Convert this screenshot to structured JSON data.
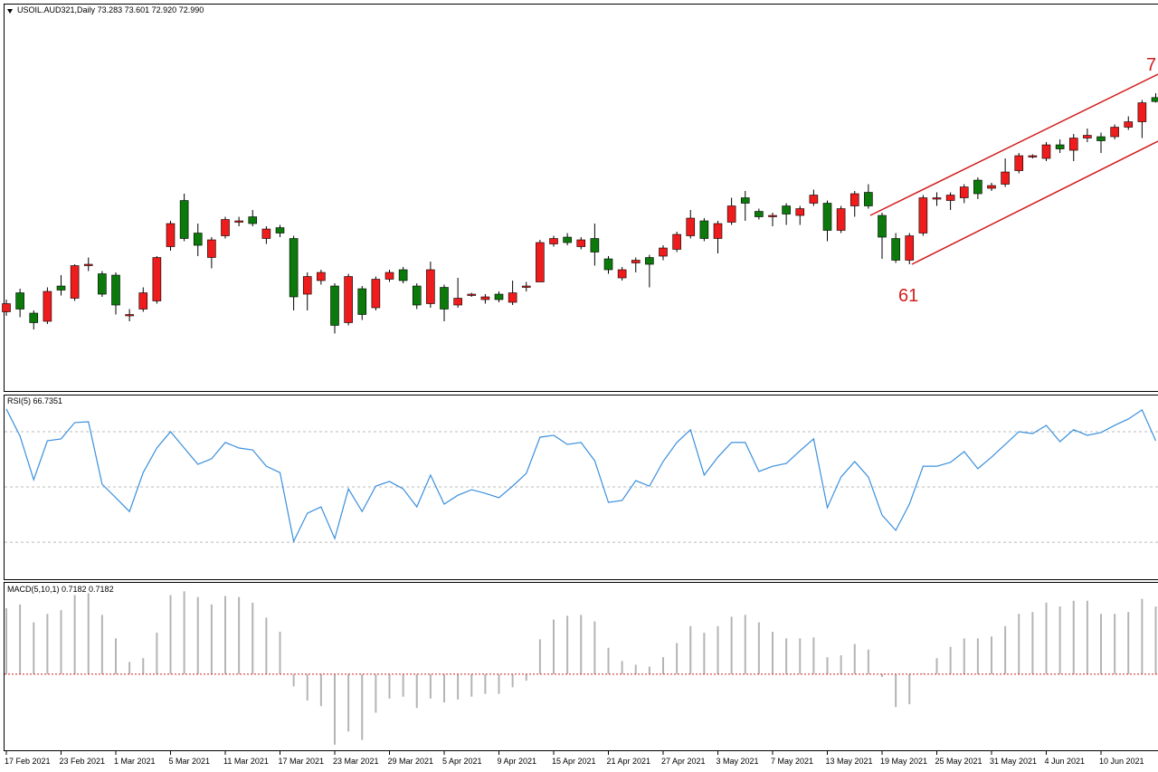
{
  "chart_data": [
    {
      "type": "candlestick",
      "title": "USOIL.AUD321,Daily",
      "ohlc_labels": [
        "73.283",
        "73.601",
        "72.920",
        "72.990"
      ],
      "categories": [
        "17 Feb 2021",
        null,
        null,
        null,
        "23 Feb 2021",
        null,
        null,
        null,
        "1 Mar 2021",
        null,
        null,
        null,
        "5 Mar 2021",
        null,
        null,
        null,
        "11 Mar 2021",
        null,
        null,
        null,
        "17 Mar 2021",
        null,
        null,
        null,
        "23 Mar 2021",
        null,
        null,
        null,
        "29 Mar 2021",
        null,
        null,
        null,
        "5 Apr 2021",
        null,
        null,
        null,
        "9 Apr 2021",
        null,
        null,
        null,
        "15 Apr 2021",
        null,
        null,
        null,
        "21 Apr 2021",
        null,
        null,
        null,
        "27 Apr 2021",
        null,
        null,
        null,
        "3 May 2021",
        null,
        null,
        null,
        "7 May 2021",
        null,
        null,
        null,
        "13 May 2021",
        null,
        null,
        null,
        "19 May 2021",
        null,
        null,
        null,
        "25 May 2021",
        null,
        null,
        null,
        "31 May 2021",
        null,
        null,
        null,
        "4 Jun 2021",
        null,
        null,
        null,
        "10 Jun 2021",
        null,
        null,
        null,
        null
      ],
      "open": [
        57.5,
        58.9,
        57.4,
        56.8,
        59.4,
        58.5,
        60.9,
        60.3,
        60.2,
        57.2,
        57.7,
        58.3,
        62.3,
        65.7,
        63.3,
        61.5,
        63.1,
        64.1,
        64.5,
        62.9,
        63.7,
        62.9,
        58.8,
        59.8,
        59.4,
        56.7,
        59.2,
        57.8,
        59.9,
        60.6,
        59.4,
        58.1,
        59.3,
        58.0,
        58.7,
        58.4,
        58.8,
        58.2,
        59.3,
        59.7,
        62.5,
        63.0,
        62.3,
        62.9,
        61.4,
        60.0,
        61.1,
        61.5,
        61.6,
        62.1,
        63.1,
        64.2,
        62.9,
        64.1,
        65.9,
        64.9,
        64.5,
        65.3,
        64.6,
        65.5,
        65.5,
        63.5,
        65.3,
        66.3,
        64.6,
        62.9,
        61.3,
        63.3,
        65.8,
        65.7,
        65.9,
        67.2,
        66.6,
        66.9,
        67.9,
        68.9,
        68.8,
        69.8,
        69.4,
        70.3,
        70.4,
        70.4,
        71.1,
        71.5,
        73.283
      ],
      "high": [
        58.4,
        59.2,
        57.6,
        59.3,
        60.2,
        61.0,
        61.5,
        60.5,
        60.4,
        57.7,
        59.3,
        61.6,
        64.2,
        66.2,
        64.0,
        63.0,
        64.5,
        64.5,
        65.0,
        63.8,
        63.9,
        63.1,
        60.4,
        60.6,
        59.6,
        60.3,
        59.4,
        60.1,
        60.6,
        60.8,
        59.6,
        61.2,
        59.5,
        60.0,
        58.9,
        58.8,
        59.0,
        59.8,
        59.7,
        62.8,
        63.1,
        63.3,
        63.0,
        64.0,
        61.6,
        60.8,
        61.5,
        61.7,
        62.4,
        63.4,
        65.0,
        64.4,
        64.2,
        65.9,
        66.4,
        65.1,
        64.8,
        65.5,
        65.3,
        66.5,
        65.7,
        65.3,
        66.4,
        66.9,
        64.8,
        63.3,
        63.3,
        66.1,
        66.3,
        66.3,
        66.9,
        67.4,
        67.0,
        68.8,
        69.2,
        69.1,
        70.0,
        70.2,
        70.6,
        71.0,
        70.7,
        71.3,
        71.9,
        73.1,
        73.601
      ],
      "low": [
        57.2,
        57.1,
        56.2,
        56.6,
        58.7,
        58.3,
        60.5,
        58.6,
        57.3,
        56.8,
        57.5,
        58.1,
        62.0,
        62.7,
        61.6,
        60.7,
        62.9,
        63.8,
        63.8,
        62.5,
        63.0,
        57.6,
        57.6,
        59.5,
        55.9,
        56.5,
        56.9,
        57.6,
        59.7,
        59.6,
        57.7,
        57.8,
        56.8,
        57.8,
        58.6,
        58.1,
        58.2,
        58.0,
        59.0,
        59.7,
        62.3,
        62.4,
        62.1,
        60.9,
        60.3,
        59.8,
        60.4,
        59.3,
        61.3,
        61.9,
        62.9,
        62.7,
        61.8,
        63.9,
        64.2,
        64.3,
        63.8,
        63.9,
        63.9,
        65.3,
        62.7,
        63.3,
        64.5,
        65.1,
        61.4,
        61.1,
        61.0,
        63.1,
        65.3,
        65.0,
        65.5,
        65.8,
        66.4,
        66.7,
        67.7,
        68.8,
        68.6,
        69.2,
        68.6,
        70.0,
        69.2,
        70.2,
        70.9,
        70.3,
        72.92
      ],
      "close": [
        58.1,
        57.7,
        56.7,
        59.0,
        59.1,
        60.9,
        61.0,
        58.8,
        58.0,
        57.3,
        58.9,
        61.5,
        64.0,
        62.9,
        62.4,
        62.8,
        64.3,
        64.2,
        64.0,
        63.6,
        63.3,
        58.6,
        60.1,
        60.4,
        56.5,
        60.1,
        57.3,
        59.9,
        60.4,
        59.8,
        58.0,
        60.6,
        57.7,
        58.5,
        58.8,
        58.6,
        58.4,
        58.9,
        59.4,
        62.6,
        62.9,
        62.6,
        62.8,
        61.9,
        60.6,
        60.6,
        61.3,
        61.0,
        62.2,
        63.2,
        64.4,
        62.9,
        64.0,
        65.3,
        65.5,
        64.5,
        64.6,
        64.7,
        65.1,
        66.1,
        63.5,
        65.1,
        66.2,
        65.3,
        63.0,
        61.3,
        63.1,
        65.9,
        65.9,
        66.1,
        66.7,
        66.2,
        66.8,
        67.8,
        69.0,
        69.0,
        69.8,
        69.5,
        70.3,
        70.5,
        70.1,
        71.1,
        71.5,
        72.9,
        72.99
      ],
      "up_color": "#ee1c1c",
      "down_color": "#0b7a0b",
      "ylim": [
        51.8,
        80.07
      ],
      "annotations": [
        "61",
        "7"
      ]
    },
    {
      "type": "line",
      "title": "RSI(5) 66.7351",
      "color": "#3a8fdc",
      "values": [
        78.2,
        68.4,
        52.6,
        66.7,
        67.4,
        73.3,
        73.6,
        51.0,
        46.1,
        41.1,
        55.2,
        64.1,
        70.0,
        64.1,
        58.2,
        60.2,
        66.1,
        64.1,
        63.4,
        57.5,
        55.2,
        30.3,
        40.5,
        42.8,
        31.3,
        49.3,
        41.1,
        50.3,
        52.0,
        49.3,
        42.8,
        54.3,
        43.8,
        47.0,
        49.0,
        47.7,
        46.1,
        50.3,
        54.9,
        68.0,
        68.7,
        65.4,
        66.1,
        59.5,
        44.4,
        45.1,
        52.3,
        50.3,
        59.2,
        66.1,
        70.7,
        54.3,
        60.8,
        66.1,
        66.1,
        55.6,
        57.5,
        58.5,
        63.1,
        67.4,
        42.5,
        53.6,
        59.2,
        53.6,
        39.8,
        34.3,
        43.8,
        57.5,
        57.5,
        58.9,
        62.8,
        56.6,
        60.8,
        65.4,
        70.0,
        69.3,
        72.3,
        66.4,
        70.7,
        68.7,
        69.7,
        72.3,
        74.6,
        77.9,
        66.7351
      ],
      "ylim": [
        16.6,
        83.1
      ],
      "levels": [
        30,
        50,
        70
      ],
      "level_color": "#bbbbbb"
    },
    {
      "type": "bar",
      "title": "MACD(5,10,1) 0.7182 0.7182",
      "color": "#b4b4b4",
      "values": [
        0.7,
        0.74,
        0.55,
        0.64,
        0.68,
        0.84,
        0.86,
        0.63,
        0.38,
        0.13,
        0.17,
        0.44,
        0.84,
        0.88,
        0.82,
        0.74,
        0.83,
        0.82,
        0.76,
        0.6,
        0.45,
        -0.13,
        -0.28,
        -0.34,
        -0.75,
        -0.61,
        -0.7,
        -0.41,
        -0.26,
        -0.24,
        -0.36,
        -0.26,
        -0.3,
        -0.27,
        -0.24,
        -0.21,
        -0.21,
        -0.14,
        -0.07,
        0.37,
        0.58,
        0.62,
        0.63,
        0.56,
        0.28,
        0.14,
        0.1,
        0.08,
        0.18,
        0.33,
        0.51,
        0.44,
        0.51,
        0.61,
        0.63,
        0.55,
        0.45,
        0.38,
        0.38,
        0.39,
        0.18,
        0.2,
        0.32,
        0.26,
        -0.03,
        -0.35,
        -0.32,
        0.01,
        0.17,
        0.29,
        0.38,
        0.38,
        0.4,
        0.51,
        0.64,
        0.66,
        0.76,
        0.72,
        0.78,
        0.78,
        0.64,
        0.64,
        0.66,
        0.8,
        0.7182
      ],
      "ylim": [
        -0.8,
        0.97
      ],
      "levels": [
        0
      ],
      "level_color": "#d22020"
    }
  ]
}
